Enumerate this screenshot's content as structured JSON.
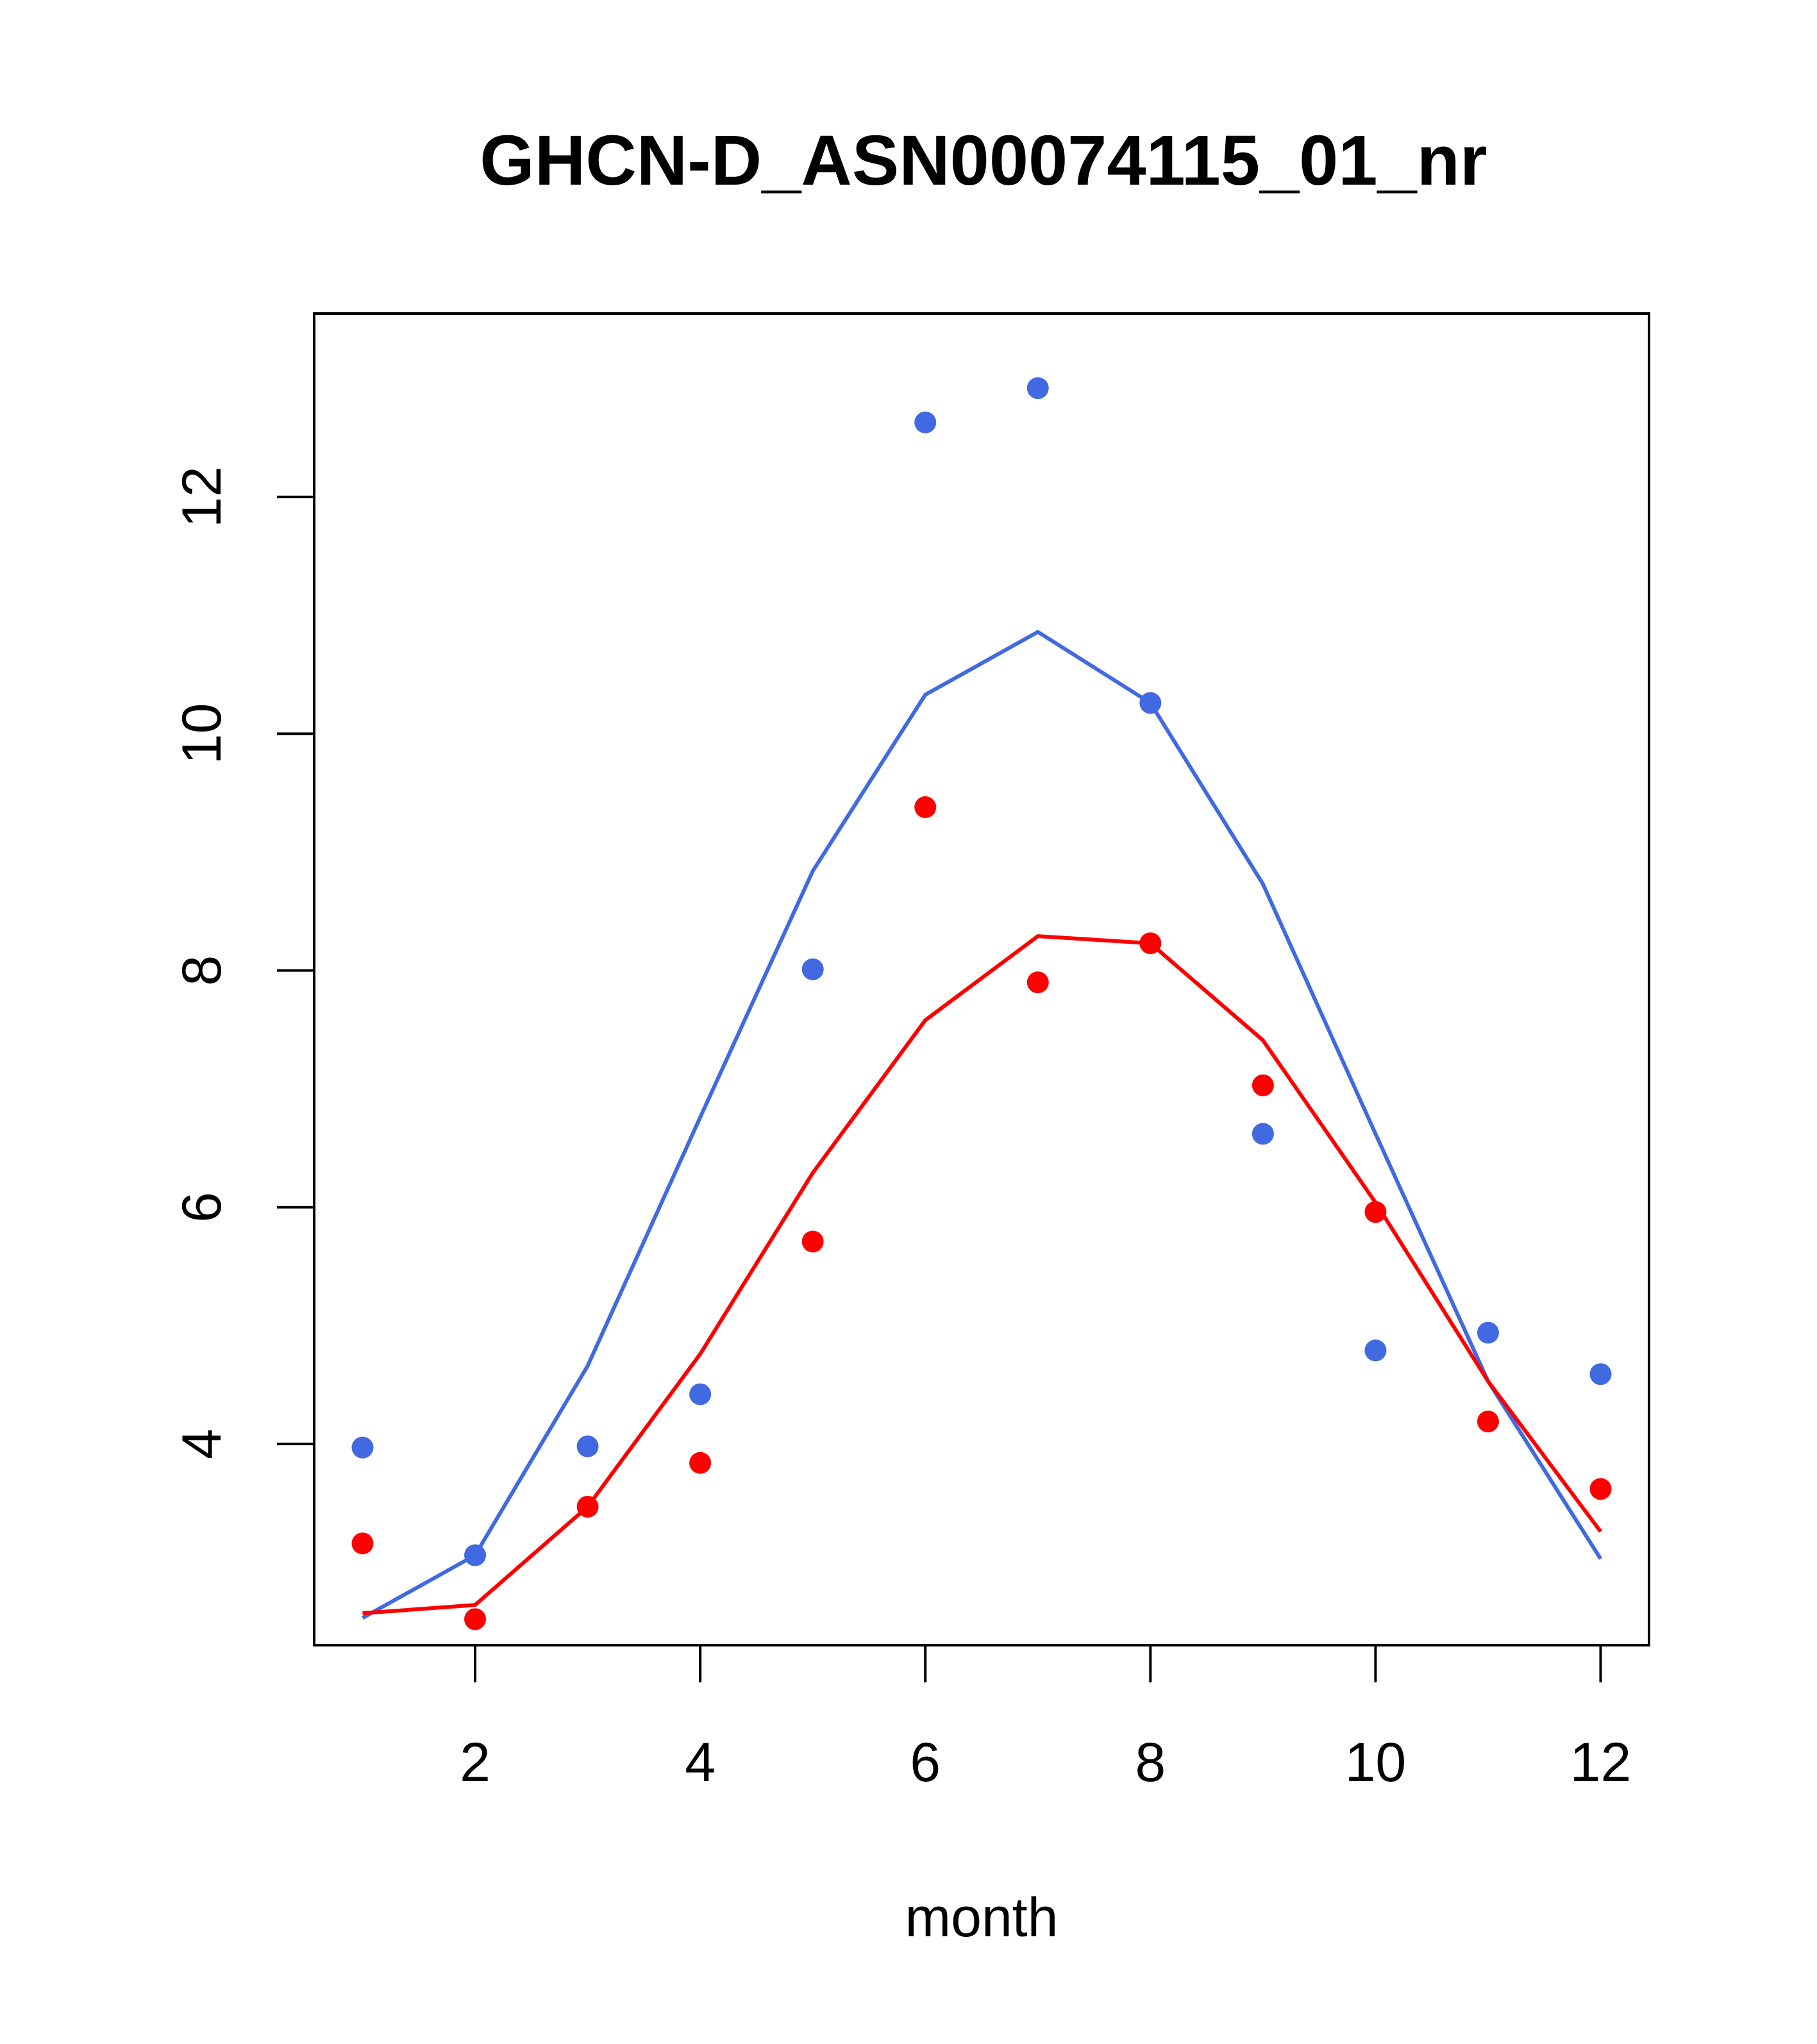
{
  "chart_data": {
    "type": "line",
    "title": "GHCN-D_ASN00074115_01_nr",
    "xlabel": "month",
    "ylabel": "",
    "xlim": [
      0.57,
      12.43
    ],
    "ylim": [
      2.3,
      13.55
    ],
    "x_ticks": [
      2,
      4,
      6,
      8,
      10,
      12
    ],
    "y_ticks": [
      4,
      6,
      8,
      10,
      12
    ],
    "grid": false,
    "series": [
      {
        "color": "#4169E1",
        "points_x": [
          1,
          2,
          3,
          4,
          5,
          6,
          7,
          8,
          9,
          10,
          11,
          12
        ],
        "points_y": [
          3.97,
          3.06,
          3.98,
          4.42,
          8.01,
          12.63,
          12.92,
          10.26,
          6.62,
          4.79,
          4.94,
          4.59
        ],
        "line_x": [
          1,
          2,
          3,
          4,
          5,
          6,
          7,
          8,
          9,
          10,
          11,
          12
        ],
        "line_y": [
          2.53,
          3.06,
          4.66,
          6.76,
          8.84,
          10.33,
          10.86,
          10.26,
          8.73,
          6.62,
          4.53,
          3.03
        ]
      },
      {
        "color": "#FF0000",
        "points_x": [
          1,
          2,
          3,
          4,
          5,
          6,
          7,
          8,
          9,
          10,
          11,
          12
        ],
        "points_y": [
          3.16,
          2.52,
          3.47,
          3.84,
          5.71,
          9.38,
          7.9,
          8.23,
          7.03,
          5.96,
          4.19,
          3.62
        ],
        "line_x": [
          1,
          2,
          3,
          4,
          5,
          6,
          7,
          8,
          9,
          10,
          11,
          12
        ],
        "line_y": [
          2.57,
          2.64,
          3.47,
          4.76,
          6.29,
          7.58,
          8.29,
          8.23,
          7.41,
          6.04,
          4.53,
          3.26
        ]
      }
    ]
  }
}
